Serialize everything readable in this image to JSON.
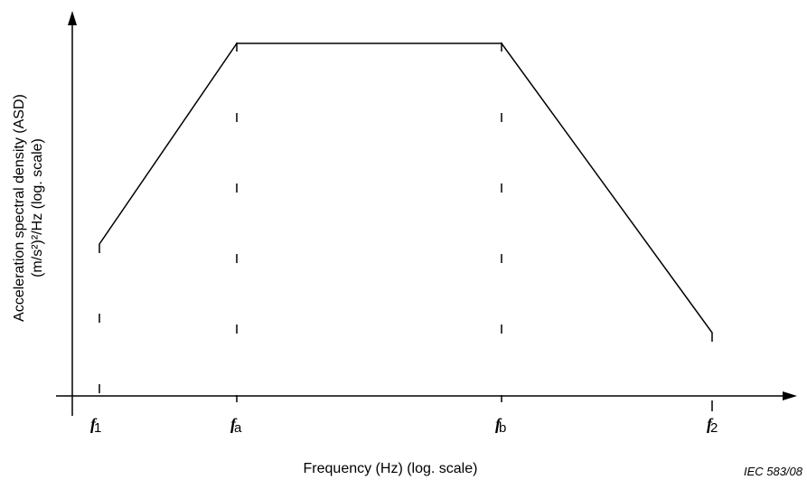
{
  "y_axis": {
    "label_lines": [
      "Acceleration spectral density (ASD)",
      "(m/s²)²/Hz (log. scale)"
    ]
  },
  "x_axis": {
    "label": "Frequency   (Hz) (log. scale)",
    "ticks": [
      {
        "symbol": "f",
        "subscript": "1"
      },
      {
        "symbol": "f",
        "subscript": "a"
      },
      {
        "symbol": "f",
        "subscript": "b"
      },
      {
        "symbol": "f",
        "subscript": "2"
      }
    ]
  },
  "footer": "IEC  583/08"
}
